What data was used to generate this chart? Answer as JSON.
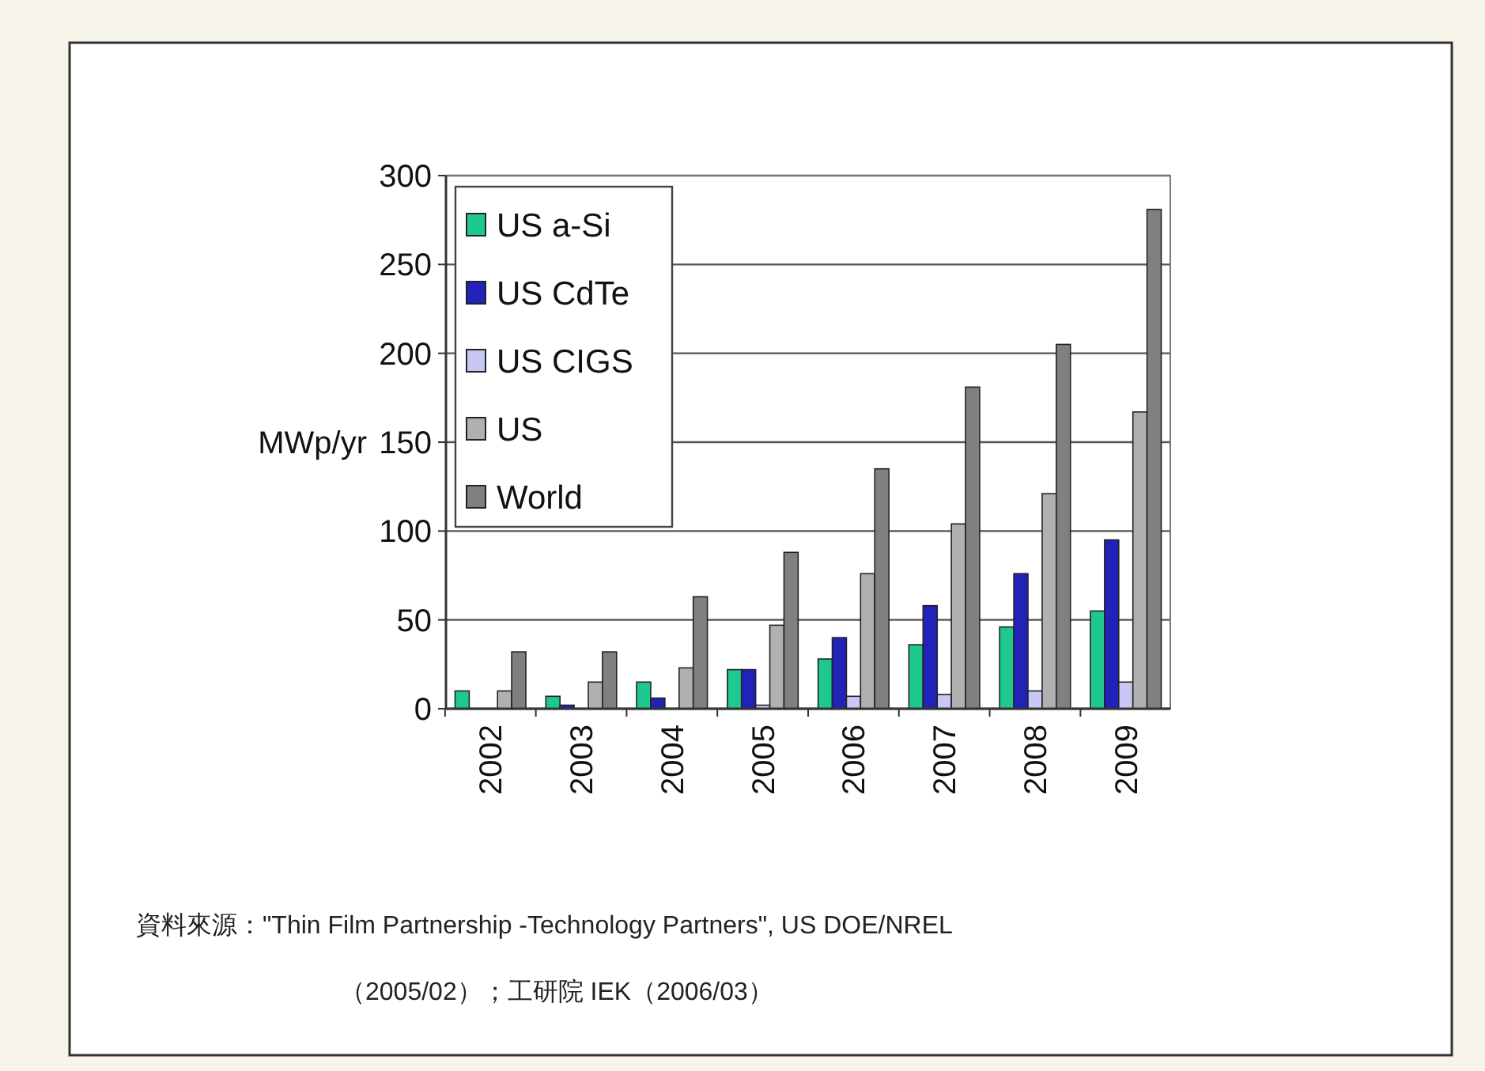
{
  "chart_data": {
    "type": "bar",
    "ylabel": "MWp/yr",
    "categories": [
      "2002",
      "2003",
      "2004",
      "2005",
      "2006",
      "2007",
      "2008",
      "2009"
    ],
    "series": [
      {
        "name": "US a-Si",
        "color": "#1fc88f",
        "values": [
          10,
          7,
          15,
          22,
          28,
          36,
          46,
          55
        ]
      },
      {
        "name": "US CdTe",
        "color": "#2222bb",
        "values": [
          0,
          2,
          6,
          22,
          40,
          58,
          76,
          95
        ]
      },
      {
        "name": "US CIGS",
        "color": "#c8c8f4",
        "values": [
          0,
          null,
          null,
          2,
          7,
          8,
          10,
          15
        ]
      },
      {
        "name": "US",
        "color": "#b0b0b0",
        "values": [
          10,
          15,
          23,
          47,
          76,
          104,
          121,
          167
        ]
      },
      {
        "name": "World",
        "color": "#808080",
        "values": [
          32,
          32,
          63,
          88,
          135,
          181,
          205,
          281
        ]
      }
    ],
    "ylim": [
      0,
      300
    ],
    "yticks": [
      0,
      50,
      100,
      150,
      200,
      250,
      300
    ],
    "grid": "y",
    "legend": "top left",
    "annotations": [
      "資料來源：\"Thin Film Partnership -Technology Partners\", US DOE/NREL",
      "（2005/02）；工研院 IEK（2006/03）"
    ]
  }
}
